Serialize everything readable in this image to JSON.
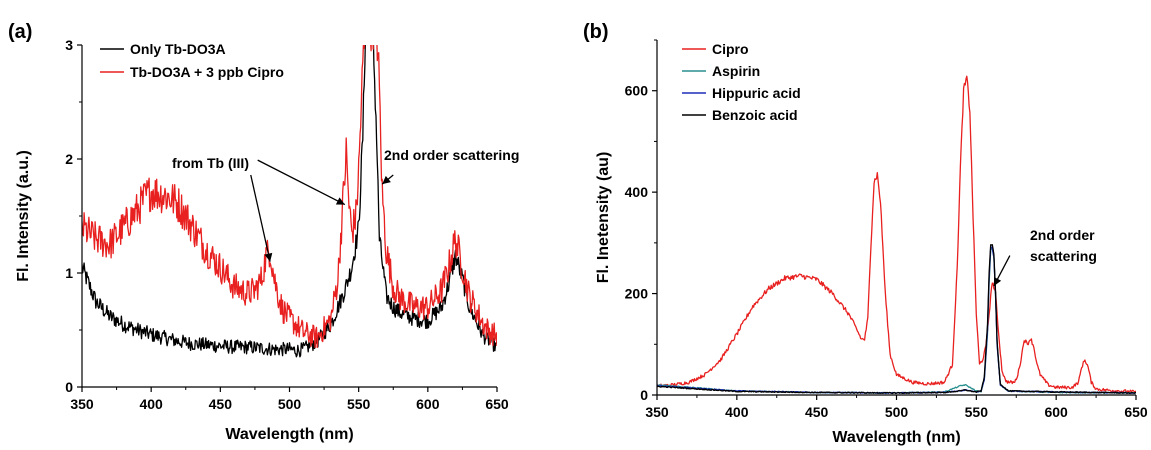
{
  "chart_data": [
    {
      "type": "line",
      "panel_label": "(a)",
      "xlabel": "Wavelength (nm)",
      "ylabel": "Fl. Intensity (a.u.)",
      "xlim": [
        350,
        650
      ],
      "ylim": [
        0,
        3
      ],
      "xticks": [
        350,
        400,
        450,
        500,
        550,
        600,
        650
      ],
      "yticks": [
        0,
        1,
        2,
        3
      ],
      "legend_position": "top-left",
      "series": [
        {
          "name": "Only Tb-DO3A",
          "color": "#000000",
          "x": [
            350,
            355,
            360,
            370,
            380,
            390,
            400,
            410,
            420,
            430,
            440,
            450,
            460,
            470,
            480,
            490,
            500,
            505,
            510,
            520,
            530,
            540,
            545,
            550,
            553,
            555,
            557,
            560,
            563,
            565,
            568,
            570,
            575,
            580,
            590,
            600,
            610,
            615,
            620,
            625,
            630,
            640,
            645,
            650
          ],
          "y": [
            1.05,
            0.9,
            0.75,
            0.62,
            0.55,
            0.5,
            0.46,
            0.43,
            0.4,
            0.38,
            0.37,
            0.36,
            0.35,
            0.35,
            0.34,
            0.33,
            0.33,
            0.32,
            0.33,
            0.4,
            0.55,
            0.85,
            1.05,
            1.4,
            2.2,
            3.2,
            3.2,
            3.2,
            2.2,
            1.3,
            1.0,
            0.8,
            0.7,
            0.65,
            0.6,
            0.58,
            0.7,
            0.9,
            1.15,
            0.95,
            0.7,
            0.45,
            0.4,
            0.35
          ],
          "noise": 0.05
        },
        {
          "name": "Tb-DO3A + 3 ppb Cipro",
          "color": "#e8201f",
          "x": [
            350,
            355,
            360,
            370,
            380,
            390,
            395,
            400,
            405,
            410,
            415,
            420,
            430,
            440,
            450,
            460,
            470,
            475,
            480,
            483,
            486,
            489,
            492,
            495,
            500,
            510,
            520,
            530,
            535,
            538,
            541,
            543,
            545,
            548,
            550,
            553,
            555,
            557,
            560,
            563,
            565,
            567,
            570,
            575,
            580,
            590,
            600,
            610,
            615,
            620,
            625,
            630,
            640,
            645,
            650
          ],
          "y": [
            1.4,
            1.35,
            1.3,
            1.25,
            1.4,
            1.55,
            1.65,
            1.72,
            1.7,
            1.68,
            1.65,
            1.6,
            1.4,
            1.2,
            1.05,
            0.88,
            0.82,
            0.85,
            0.95,
            1.15,
            1.2,
            0.95,
            0.8,
            0.68,
            0.6,
            0.48,
            0.43,
            0.6,
            0.95,
            1.5,
            2.05,
            1.6,
            1.35,
            1.5,
            1.9,
            2.8,
            3.2,
            3.2,
            3.2,
            3.2,
            2.6,
            1.7,
            1.2,
            0.88,
            0.78,
            0.7,
            0.7,
            0.85,
            1.05,
            1.3,
            1.05,
            0.8,
            0.55,
            0.48,
            0.45
          ],
          "noise": 0.08
        }
      ],
      "annotations": [
        {
          "text": "from Tb (III)",
          "target_x": 486,
          "target_y": 1.1,
          "anchor_x": 472,
          "anchor_y": 1.86
        },
        {
          "text": "2nd order scattering",
          "target_x": 567,
          "target_y": 1.78,
          "anchor_x": 575,
          "anchor_y": 1.86
        }
      ]
    },
    {
      "type": "line",
      "panel_label": "(b)",
      "xlabel": "Wavelength (nm)",
      "ylabel": "Fl. Inetensity (au)",
      "xlim": [
        350,
        650
      ],
      "ylim": [
        0,
        700
      ],
      "xticks": [
        350,
        400,
        450,
        500,
        550,
        600,
        650
      ],
      "yticks": [
        0,
        200,
        400,
        600
      ],
      "legend_position": "top-left",
      "series": [
        {
          "name": "Cipro",
          "color": "#e8201f",
          "x": [
            350,
            360,
            370,
            380,
            390,
            400,
            410,
            420,
            430,
            440,
            450,
            460,
            470,
            475,
            478,
            480,
            482,
            484,
            486,
            488,
            490,
            493,
            496,
            500,
            510,
            520,
            530,
            535,
            538,
            540,
            542,
            544,
            546,
            548,
            550,
            552,
            554,
            556,
            558,
            560,
            562,
            564,
            566,
            568,
            570,
            574,
            576,
            578,
            580,
            582,
            584,
            586,
            588,
            590,
            595,
            600,
            610,
            614,
            616,
            618,
            620,
            622,
            625,
            630,
            640,
            650
          ],
          "y": [
            18,
            20,
            25,
            40,
            70,
            120,
            175,
            210,
            230,
            235,
            228,
            200,
            160,
            130,
            110,
            110,
            150,
            300,
            420,
            435,
            380,
            200,
            80,
            40,
            25,
            22,
            25,
            60,
            250,
            450,
            600,
            625,
            560,
            350,
            160,
            60,
            70,
            95,
            160,
            225,
            200,
            120,
            50,
            30,
            25,
            25,
            40,
            70,
            110,
            100,
            112,
            95,
            60,
            40,
            20,
            15,
            15,
            25,
            55,
            70,
            55,
            25,
            12,
            10,
            8,
            6
          ],
          "noise": 3
        },
        {
          "name": "Aspirin",
          "color": "#2a8f8f",
          "x": [
            350,
            400,
            450,
            500,
            530,
            535,
            540,
            543,
            546,
            550,
            553,
            555,
            557,
            558,
            559,
            560,
            561,
            562,
            563,
            565,
            570,
            600,
            650
          ],
          "y": [
            20,
            8,
            5,
            4,
            6,
            12,
            18,
            20,
            15,
            8,
            6,
            30,
            120,
            220,
            285,
            290,
            270,
            200,
            100,
            20,
            8,
            5,
            4
          ],
          "noise": 1
        },
        {
          "name": "Hippuric acid",
          "color": "#1f2fb8",
          "x": [
            350,
            400,
            450,
            500,
            530,
            540,
            543,
            546,
            550,
            553,
            555,
            557,
            558,
            559,
            560,
            561,
            562,
            563,
            565,
            570,
            600,
            650
          ],
          "y": [
            18,
            8,
            5,
            4,
            5,
            8,
            10,
            8,
            6,
            8,
            30,
            130,
            230,
            290,
            292,
            270,
            200,
            100,
            20,
            8,
            6,
            4
          ],
          "noise": 1
        },
        {
          "name": "Benzoic acid",
          "color": "#000000",
          "x": [
            350,
            400,
            450,
            500,
            530,
            540,
            543,
            546,
            550,
            553,
            555,
            557,
            558,
            559,
            560,
            561,
            562,
            563,
            565,
            570,
            600,
            650
          ],
          "y": [
            17,
            7,
            5,
            4,
            5,
            8,
            10,
            8,
            6,
            8,
            35,
            140,
            240,
            295,
            298,
            275,
            205,
            105,
            22,
            8,
            6,
            4
          ],
          "noise": 1
        }
      ],
      "annotations": [
        {
          "text": "2nd order",
          "line2": "scattering",
          "target_x": 561,
          "target_y": 215,
          "anchor_x": 571,
          "anchor_y": 275
        }
      ]
    }
  ]
}
